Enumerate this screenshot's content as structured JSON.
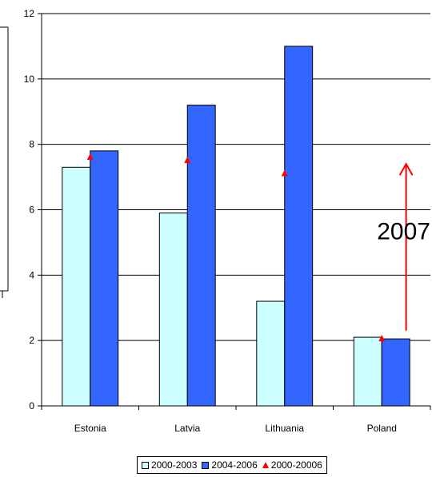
{
  "chart_data": {
    "type": "bar",
    "categories": [
      "Estonia",
      "Latvia",
      "Lithuania",
      "Poland"
    ],
    "series": [
      {
        "name": "2000-2003",
        "type": "bar",
        "values": [
          7.3,
          5.9,
          3.2,
          2.1
        ],
        "color": "#ccffff"
      },
      {
        "name": "2004-2006",
        "type": "bar",
        "values": [
          7.8,
          9.2,
          11.0,
          2.05
        ],
        "color": "#3366ff"
      },
      {
        "name": "2000-20006",
        "type": "marker",
        "values": [
          7.6,
          7.5,
          7.1,
          2.05
        ],
        "color": "#ff0000"
      }
    ],
    "ylim": [
      0,
      12
    ],
    "yticks": [
      0,
      2,
      4,
      6,
      8,
      10,
      12
    ],
    "grid": true,
    "legend": "bottom",
    "annotation": {
      "text": "2007",
      "arrow_color": "#ff0000",
      "arrow_from": 2.3,
      "arrow_to": 7.4,
      "category": "Poland"
    }
  }
}
